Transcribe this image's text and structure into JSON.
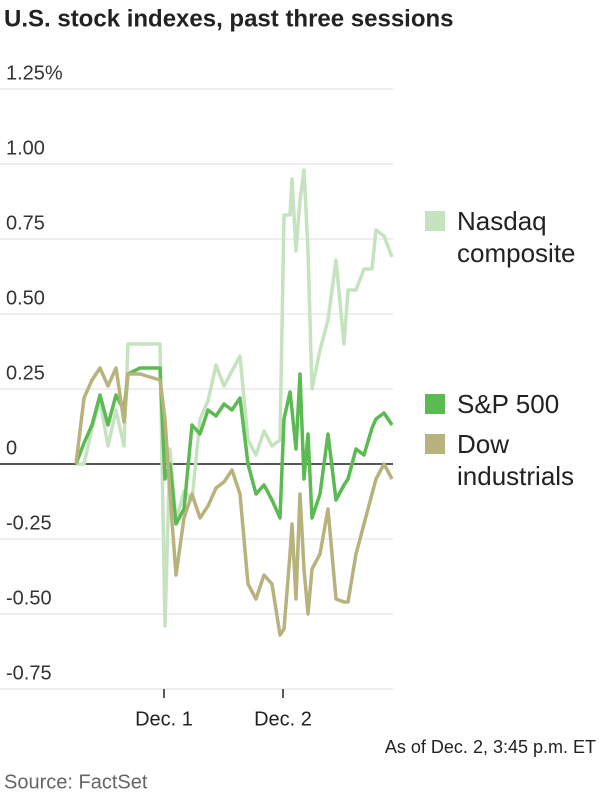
{
  "chart_data": {
    "type": "line",
    "title": "U.S. stock indexes, past three sessions",
    "note": "As of Dec. 2, 3:45 p.m. ET",
    "source": "Source: FactSet",
    "x": [
      19,
      21,
      23,
      25,
      27,
      29,
      31,
      32,
      35,
      40,
      41.25,
      42.5,
      44,
      46,
      48,
      50,
      52,
      54,
      56,
      58,
      60,
      62,
      64,
      66,
      68,
      70,
      71,
      72.5,
      73,
      74,
      75,
      76,
      77,
      78,
      80,
      82,
      84,
      86,
      87,
      89,
      91,
      93,
      94,
      96,
      98
    ],
    "xlim": [
      0,
      98.25
    ],
    "xticks": [
      {
        "value": 41,
        "label": "Dec. 1"
      },
      {
        "value": 70.75,
        "label": "Dec. 2"
      }
    ],
    "ylim": [
      -0.75,
      1.25
    ],
    "yticks": [
      {
        "value": 1.25,
        "label": "1.25%"
      },
      {
        "value": 1,
        "label": "1.00"
      },
      0.75,
      {
        "value": 0.5,
        "label": "0.50"
      },
      0.25,
      0,
      -0.25,
      {
        "value": -0.5,
        "label": "-0.50"
      },
      -0.75
    ],
    "grid": true,
    "series": [
      {
        "name": "Nasdaq composite",
        "color": "#c6e3c0",
        "values": [
          0,
          0,
          0.12,
          0.21,
          0.06,
          0.18,
          0.06,
          0.4,
          0.4,
          0.4,
          -0.54,
          0.05,
          -0.19,
          -0.09,
          -0.12,
          0.15,
          0.21,
          0.33,
          0.26,
          0.31,
          0.36,
          0.08,
          0.03,
          0.11,
          0.06,
          0.08,
          0.83,
          0.83,
          0.95,
          0.71,
          0.88,
          0.98,
          0.71,
          0.25,
          0.38,
          0.48,
          0.68,
          0.4,
          0.58,
          0.58,
          0.65,
          0.65,
          0.78,
          0.76,
          0.69
        ]
      },
      {
        "name": "S&P 500",
        "color": "#5cba52",
        "values": [
          0,
          0.07,
          0.13,
          0.23,
          0.13,
          0.23,
          0.18,
          0.3,
          0.32,
          0.32,
          -0.05,
          0.0,
          -0.2,
          -0.15,
          0.13,
          0.1,
          0.18,
          0.16,
          0.2,
          0.18,
          0.22,
          0.0,
          -0.1,
          -0.07,
          -0.12,
          -0.18,
          0.15,
          0.24,
          0.18,
          0.05,
          0.3,
          -0.05,
          0.1,
          -0.18,
          -0.1,
          0.1,
          -0.12,
          -0.07,
          -0.05,
          0.05,
          0.03,
          0.12,
          0.15,
          0.17,
          0.13
        ]
      },
      {
        "name": "Dow industrials",
        "color": "#b8b27d",
        "values": [
          0,
          0.22,
          0.28,
          0.32,
          0.26,
          0.32,
          0.14,
          0.3,
          0.3,
          0.28,
          0.15,
          -0.1,
          -0.37,
          -0.18,
          -0.1,
          -0.18,
          -0.14,
          -0.08,
          -0.06,
          -0.02,
          -0.1,
          -0.4,
          -0.45,
          -0.37,
          -0.4,
          -0.57,
          -0.55,
          -0.3,
          -0.2,
          -0.45,
          -0.1,
          -0.35,
          -0.5,
          -0.35,
          -0.3,
          -0.15,
          -0.45,
          -0.46,
          -0.46,
          -0.3,
          -0.2,
          -0.1,
          -0.05,
          0.0,
          -0.05
        ]
      }
    ]
  }
}
